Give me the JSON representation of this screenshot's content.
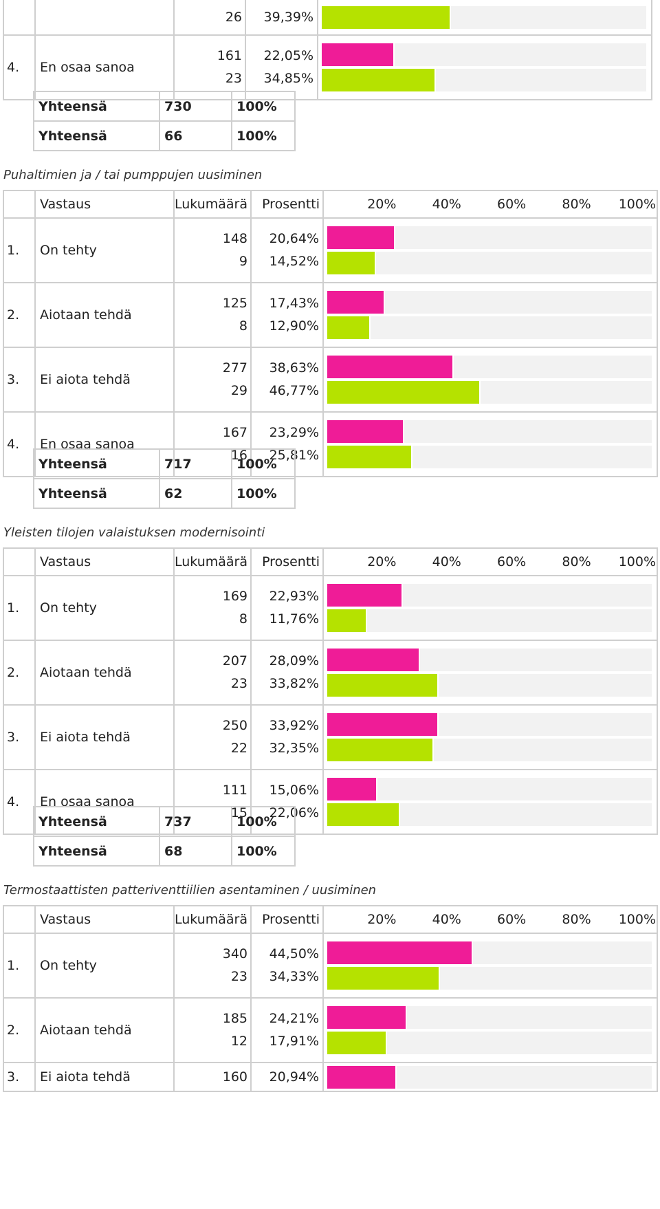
{
  "colors": {
    "series1": "#ef1c97",
    "series2": "#b5e200",
    "track": "#f2f2f2",
    "border": "#cfcfcf"
  },
  "header": {
    "vastaus": "Vastaus",
    "lukumaara": "Lukumäärä",
    "prosentti": "Prosentti",
    "ticks": [
      "20%",
      "40%",
      "60%",
      "80%",
      "100%"
    ]
  },
  "total_label": "Yhteensä",
  "partial": {
    "top_row": {
      "count": "26",
      "pct": "39,39%",
      "bars": [
        39.39
      ]
    },
    "rows": [
      {
        "num": "4.",
        "label": "En osaa sanoa",
        "counts": [
          "161",
          "23"
        ],
        "pcts": [
          "22,05%",
          "34,85%"
        ],
        "bars": [
          22.05,
          34.85
        ]
      }
    ],
    "totals": [
      {
        "count": "730",
        "pct": "100%"
      },
      {
        "count": "66",
        "pct": "100%"
      }
    ]
  },
  "sections": [
    {
      "title": "Puhaltimien ja / tai pumppujen uusiminen",
      "rows": [
        {
          "num": "1.",
          "label": "On tehty",
          "counts": [
            "148",
            "9"
          ],
          "pcts": [
            "20,64%",
            "14,52%"
          ],
          "bars": [
            20.64,
            14.52
          ]
        },
        {
          "num": "2.",
          "label": "Aiotaan tehdä",
          "counts": [
            "125",
            "8"
          ],
          "pcts": [
            "17,43%",
            "12,90%"
          ],
          "bars": [
            17.43,
            12.9
          ]
        },
        {
          "num": "3.",
          "label": "Ei aiota tehdä",
          "counts": [
            "277",
            "29"
          ],
          "pcts": [
            "38,63%",
            "46,77%"
          ],
          "bars": [
            38.63,
            46.77
          ]
        },
        {
          "num": "4.",
          "label": "En osaa sanoa",
          "counts": [
            "167",
            "16"
          ],
          "pcts": [
            "23,29%",
            "25,81%"
          ],
          "bars": [
            23.29,
            25.81
          ]
        }
      ],
      "totals": [
        {
          "count": "717",
          "pct": "100%"
        },
        {
          "count": "62",
          "pct": "100%"
        }
      ]
    },
    {
      "title": "Yleisten tilojen valaistuksen modernisointi",
      "rows": [
        {
          "num": "1.",
          "label": "On tehty",
          "counts": [
            "169",
            "8"
          ],
          "pcts": [
            "22,93%",
            "11,76%"
          ],
          "bars": [
            22.93,
            11.76
          ]
        },
        {
          "num": "2.",
          "label": "Aiotaan tehdä",
          "counts": [
            "207",
            "23"
          ],
          "pcts": [
            "28,09%",
            "33,82%"
          ],
          "bars": [
            28.09,
            33.82
          ]
        },
        {
          "num": "3.",
          "label": "Ei aiota tehdä",
          "counts": [
            "250",
            "22"
          ],
          "pcts": [
            "33,92%",
            "32,35%"
          ],
          "bars": [
            33.92,
            32.35
          ]
        },
        {
          "num": "4.",
          "label": "En osaa sanoa",
          "counts": [
            "111",
            "15"
          ],
          "pcts": [
            "15,06%",
            "22,06%"
          ],
          "bars": [
            15.06,
            22.06
          ]
        }
      ],
      "totals": [
        {
          "count": "737",
          "pct": "100%"
        },
        {
          "count": "68",
          "pct": "100%"
        }
      ]
    },
    {
      "title": "Termostaattisten patteriventtiilien asentaminen / uusiminen",
      "rows": [
        {
          "num": "1.",
          "label": "On tehty",
          "counts": [
            "340",
            "23"
          ],
          "pcts": [
            "44,50%",
            "34,33%"
          ],
          "bars": [
            44.5,
            34.33
          ]
        },
        {
          "num": "2.",
          "label": "Aiotaan tehdä",
          "counts": [
            "185",
            "12"
          ],
          "pcts": [
            "24,21%",
            "17,91%"
          ],
          "bars": [
            24.21,
            17.91
          ]
        },
        {
          "num": "3.",
          "label": "Ei aiota tehdä",
          "counts": [
            "160"
          ],
          "pcts": [
            "20,94%"
          ],
          "bars": [
            20.94
          ]
        }
      ],
      "totals": []
    }
  ]
}
